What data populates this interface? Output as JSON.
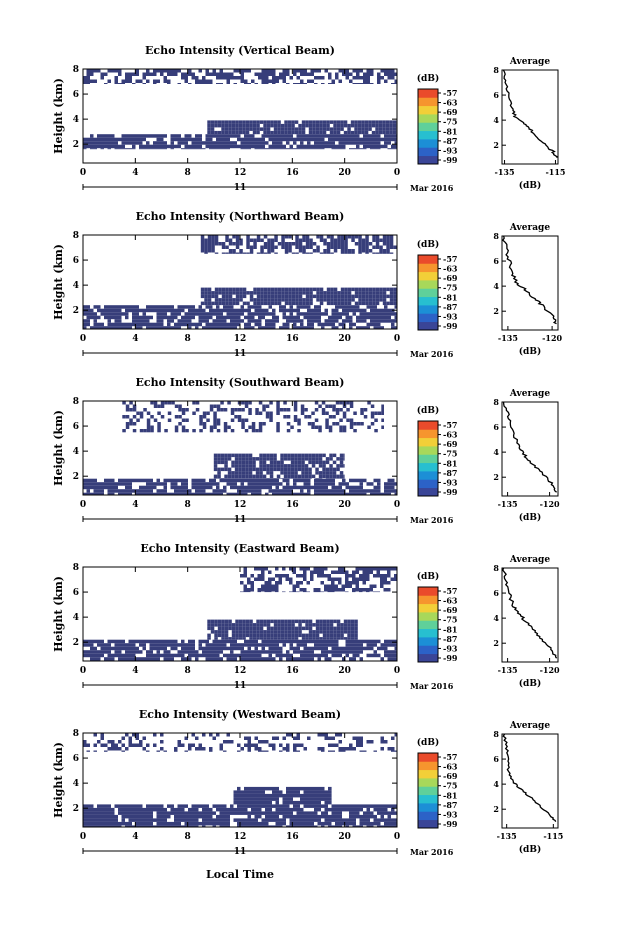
{
  "footer": {
    "xlabel": "Local Time"
  },
  "chart_data": [
    {
      "type": "heatmap",
      "title": "Echo Intensity (Vertical Beam)",
      "ylabel": "Height (km)",
      "x_ticks": [
        "0",
        "4",
        "8",
        "12",
        "16",
        "20",
        "0"
      ],
      "y_ticks": [
        "2",
        "4",
        "6",
        "8"
      ],
      "ylim": [
        0.5,
        8
      ],
      "xlim": [
        0,
        24
      ],
      "date_label": "11",
      "month_label": "Mar 2016",
      "colorbar": {
        "unit": "(dB)",
        "ticks": [
          "-57",
          "-63",
          "-69",
          "-75",
          "-81",
          "-87",
          "-93",
          "-99"
        ]
      },
      "echo_regions": [
        {
          "from_h": 0,
          "to_h": 24,
          "low_km": 1.6,
          "high_km": 2.8,
          "density": 0.8
        },
        {
          "from_h": 9.5,
          "to_h": 24,
          "low_km": 2.8,
          "high_km": 3.9,
          "density": 0.9
        },
        {
          "from_h": 0,
          "to_h": 24,
          "low_km": 6.8,
          "high_km": 8,
          "density": 0.55
        }
      ],
      "profile": {
        "title": "Average",
        "xlabel": "(dB)",
        "x_ticks": [
          "-135",
          "-115"
        ],
        "y_ticks": [
          "2",
          "4",
          "6",
          "8"
        ],
        "xlim": [
          -136,
          -114
        ],
        "points": [
          [
            -135.5,
            8
          ],
          [
            -134.5,
            7
          ],
          [
            -133.5,
            6
          ],
          [
            -132,
            5
          ],
          [
            -131,
            4.3
          ],
          [
            -128,
            3.8
          ],
          [
            -125,
            3.3
          ],
          [
            -122,
            2.6
          ],
          [
            -119,
            2
          ],
          [
            -116,
            1.5
          ],
          [
            -114.5,
            1
          ]
        ]
      }
    },
    {
      "type": "heatmap",
      "title": "Echo Intensity (Northward Beam)",
      "ylabel": "Height (km)",
      "x_ticks": [
        "0",
        "4",
        "8",
        "12",
        "16",
        "20",
        "0"
      ],
      "y_ticks": [
        "2",
        "4",
        "6",
        "8"
      ],
      "ylim": [
        0.5,
        8
      ],
      "xlim": [
        0,
        24
      ],
      "date_label": "11",
      "month_label": "Mar 2016",
      "colorbar": {
        "unit": "(dB)",
        "ticks": [
          "-57",
          "-63",
          "-69",
          "-75",
          "-81",
          "-87",
          "-93",
          "-99"
        ]
      },
      "echo_regions": [
        {
          "from_h": 0,
          "to_h": 24,
          "low_km": 0.5,
          "high_km": 2.4,
          "density": 0.75
        },
        {
          "from_h": 9,
          "to_h": 24,
          "low_km": 2.4,
          "high_km": 3.8,
          "density": 0.9
        },
        {
          "from_h": 9,
          "to_h": 24,
          "low_km": 6.5,
          "high_km": 8,
          "density": 0.65
        }
      ],
      "profile": {
        "title": "Average",
        "xlabel": "(dB)",
        "x_ticks": [
          "-135",
          "-120"
        ],
        "y_ticks": [
          "2",
          "4",
          "6",
          "8"
        ],
        "xlim": [
          -137,
          -118
        ],
        "points": [
          [
            -136.5,
            8
          ],
          [
            -135.5,
            7
          ],
          [
            -134.5,
            6
          ],
          [
            -133.5,
            5
          ],
          [
            -132,
            4.2
          ],
          [
            -129,
            3.7
          ],
          [
            -126,
            3
          ],
          [
            -123,
            2.4
          ],
          [
            -120,
            1.6
          ],
          [
            -118.5,
            1
          ]
        ]
      }
    },
    {
      "type": "heatmap",
      "title": "Echo Intensity (Southward Beam)",
      "ylabel": "Height (km)",
      "x_ticks": [
        "0",
        "4",
        "8",
        "12",
        "16",
        "20",
        "0"
      ],
      "y_ticks": [
        "2",
        "4",
        "6",
        "8"
      ],
      "ylim": [
        0.5,
        8
      ],
      "xlim": [
        0,
        24
      ],
      "date_label": "11",
      "month_label": "Mar 2016",
      "colorbar": {
        "unit": "(dB)",
        "ticks": [
          "-57",
          "-63",
          "-69",
          "-75",
          "-81",
          "-87",
          "-93",
          "-99"
        ]
      },
      "echo_regions": [
        {
          "from_h": 0,
          "to_h": 24,
          "low_km": 0.5,
          "high_km": 1.8,
          "density": 0.8
        },
        {
          "from_h": 10,
          "to_h": 20,
          "low_km": 1.8,
          "high_km": 3.8,
          "density": 0.85
        },
        {
          "from_h": 3,
          "to_h": 23,
          "low_km": 5.5,
          "high_km": 8,
          "density": 0.35
        }
      ],
      "profile": {
        "title": "Average",
        "xlabel": "(dB)",
        "x_ticks": [
          "-135",
          "-120"
        ],
        "y_ticks": [
          "2",
          "4",
          "6",
          "8"
        ],
        "xlim": [
          -137,
          -117
        ],
        "points": [
          [
            -136.5,
            8
          ],
          [
            -135,
            7
          ],
          [
            -133.5,
            6
          ],
          [
            -132,
            5
          ],
          [
            -130.5,
            4.2
          ],
          [
            -128,
            3.5
          ],
          [
            -125,
            2.8
          ],
          [
            -122,
            2.2
          ],
          [
            -119,
            1.4
          ],
          [
            -117.5,
            0.8
          ]
        ]
      }
    },
    {
      "type": "heatmap",
      "title": "Echo Intensity (Eastward Beam)",
      "ylabel": "Height (km)",
      "x_ticks": [
        "0",
        "4",
        "8",
        "12",
        "16",
        "20",
        "0"
      ],
      "y_ticks": [
        "2",
        "4",
        "6",
        "8"
      ],
      "ylim": [
        0.5,
        8
      ],
      "xlim": [
        0,
        24
      ],
      "date_label": "11",
      "month_label": "Mar 2016",
      "colorbar": {
        "unit": "(dB)",
        "ticks": [
          "-57",
          "-63",
          "-69",
          "-75",
          "-81",
          "-87",
          "-93",
          "-99"
        ]
      },
      "echo_regions": [
        {
          "from_h": 0,
          "to_h": 24,
          "low_km": 0.5,
          "high_km": 2.2,
          "density": 0.8
        },
        {
          "from_h": 9.5,
          "to_h": 21,
          "low_km": 2.2,
          "high_km": 3.8,
          "density": 0.9
        },
        {
          "from_h": 12,
          "to_h": 24,
          "low_km": 6,
          "high_km": 8,
          "density": 0.55
        }
      ],
      "profile": {
        "title": "Average",
        "xlabel": "(dB)",
        "x_ticks": [
          "-135",
          "-120"
        ],
        "y_ticks": [
          "2",
          "4",
          "6",
          "8"
        ],
        "xlim": [
          -137,
          -117
        ],
        "points": [
          [
            -136.5,
            8
          ],
          [
            -135.5,
            7
          ],
          [
            -134.5,
            6
          ],
          [
            -133,
            5
          ],
          [
            -131,
            4.4
          ],
          [
            -128.5,
            3.7
          ],
          [
            -125.5,
            3
          ],
          [
            -122.5,
            2.3
          ],
          [
            -119.5,
            1.5
          ],
          [
            -117.5,
            0.8
          ]
        ]
      }
    },
    {
      "type": "heatmap",
      "title": "Echo Intensity (Westward Beam)",
      "ylabel": "Height (km)",
      "x_ticks": [
        "0",
        "4",
        "8",
        "12",
        "16",
        "20",
        "0"
      ],
      "y_ticks": [
        "2",
        "4",
        "6",
        "8"
      ],
      "ylim": [
        0.5,
        8
      ],
      "xlim": [
        0,
        24
      ],
      "date_label": "11",
      "month_label": "Mar 2016",
      "colorbar": {
        "unit": "(dB)",
        "ticks": [
          "-57",
          "-63",
          "-69",
          "-75",
          "-81",
          "-87",
          "-93",
          "-99"
        ]
      },
      "echo_regions": [
        {
          "from_h": 0,
          "to_h": 24,
          "low_km": 0.5,
          "high_km": 2.3,
          "density": 0.85
        },
        {
          "from_h": 11.5,
          "to_h": 19,
          "low_km": 2.3,
          "high_km": 3.7,
          "density": 0.85
        },
        {
          "from_h": 0,
          "to_h": 24,
          "low_km": 6.5,
          "high_km": 8,
          "density": 0.3
        }
      ],
      "profile": {
        "title": "Average",
        "xlabel": "(dB)",
        "x_ticks": [
          "-135",
          "-115"
        ],
        "y_ticks": [
          "2",
          "4",
          "6",
          "8"
        ],
        "xlim": [
          -137,
          -113
        ],
        "points": [
          [
            -136,
            8
          ],
          [
            -135,
            7
          ],
          [
            -134.5,
            6
          ],
          [
            -134,
            5
          ],
          [
            -132.5,
            4.2
          ],
          [
            -129,
            3.6
          ],
          [
            -125,
            3
          ],
          [
            -121,
            2.3
          ],
          [
            -117,
            1.6
          ],
          [
            -114,
            1
          ]
        ]
      }
    }
  ]
}
